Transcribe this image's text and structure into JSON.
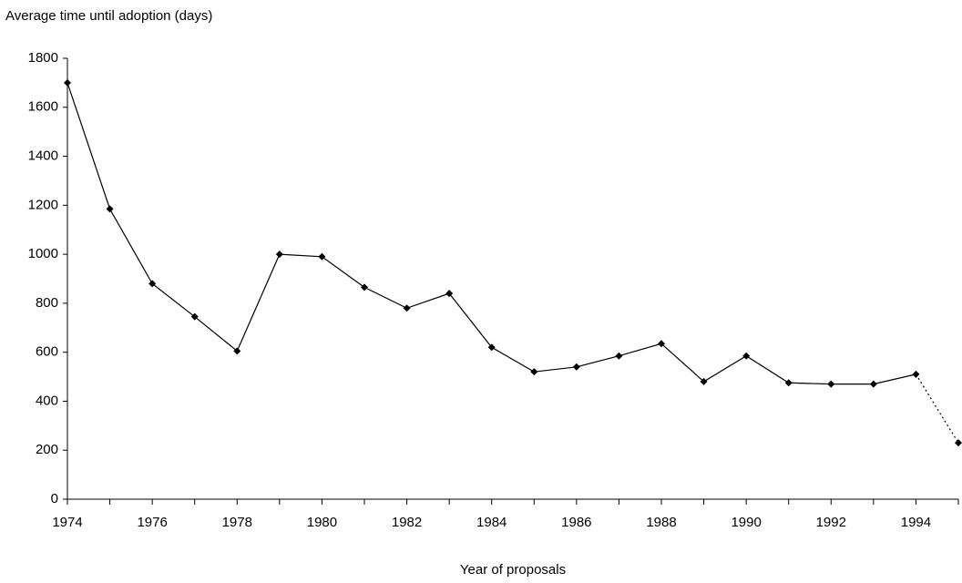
{
  "chart_data": {
    "type": "line",
    "title": "Average time until adoption (days)",
    "x_label": "Year of proposals",
    "x": [
      1974,
      1975,
      1976,
      1977,
      1978,
      1979,
      1980,
      1981,
      1982,
      1983,
      1984,
      1985,
      1986,
      1987,
      1988,
      1989,
      1990,
      1991,
      1992,
      1993,
      1994,
      1995
    ],
    "series": [
      {
        "color": "#000000",
        "dotted_last_segment": true,
        "values": [
          1700,
          1185,
          880,
          745,
          605,
          1000,
          990,
          865,
          780,
          840,
          620,
          520,
          540,
          585,
          635,
          480,
          585,
          475,
          470,
          470,
          510,
          230
        ]
      }
    ],
    "xlim": [
      1974,
      1995
    ],
    "xticks": [
      1974,
      1976,
      1978,
      1980,
      1982,
      1984,
      1986,
      1988,
      1990,
      1992,
      1994
    ],
    "xminorticks": [
      1975,
      1977,
      1979,
      1981,
      1983,
      1985,
      1987,
      1989,
      1991,
      1993,
      1995
    ],
    "ylim": [
      0,
      1800
    ],
    "yticks": [
      0,
      200,
      400,
      600,
      800,
      1000,
      1200,
      1400,
      1600,
      1800
    ],
    "grid": false
  }
}
